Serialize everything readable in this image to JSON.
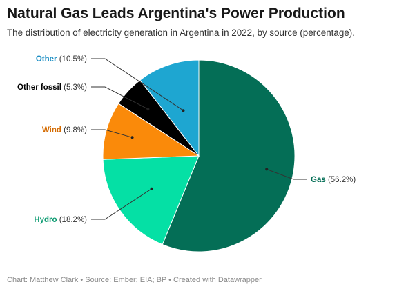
{
  "header": {
    "title": "Natural Gas Leads Argentina's Power Production",
    "subtitle": "The distribution of electricity generation in Argentina in 2022, by source (percentage)."
  },
  "footer": {
    "credit": "Chart: Matthew Clark • Source: Ember; EIA; BP • Created with Datawrapper"
  },
  "chart_data": {
    "type": "pie",
    "unit": "%",
    "slices": [
      {
        "name": "Gas",
        "value": 56.2,
        "label": "(56.2%)",
        "color": "#046e56",
        "text_color": "#046e56"
      },
      {
        "name": "Hydro",
        "value": 18.2,
        "label": "(18.2%)",
        "color": "#05e0a5",
        "text_color": "#0a9a70"
      },
      {
        "name": "Wind",
        "value": 9.8,
        "label": "(9.8%)",
        "color": "#fa8a0a",
        "text_color": "#d46a00"
      },
      {
        "name": "Other fossil",
        "value": 5.3,
        "label": "(5.3%)",
        "color": "#000000",
        "text_color": "#000000"
      },
      {
        "name": "Other",
        "value": 10.5,
        "label": "(10.5%)",
        "color": "#1ea6d1",
        "text_color": "#1e8fc4"
      }
    ],
    "start": "12 o'clock",
    "direction": "clockwise",
    "legend": "none (direct labels)"
  }
}
